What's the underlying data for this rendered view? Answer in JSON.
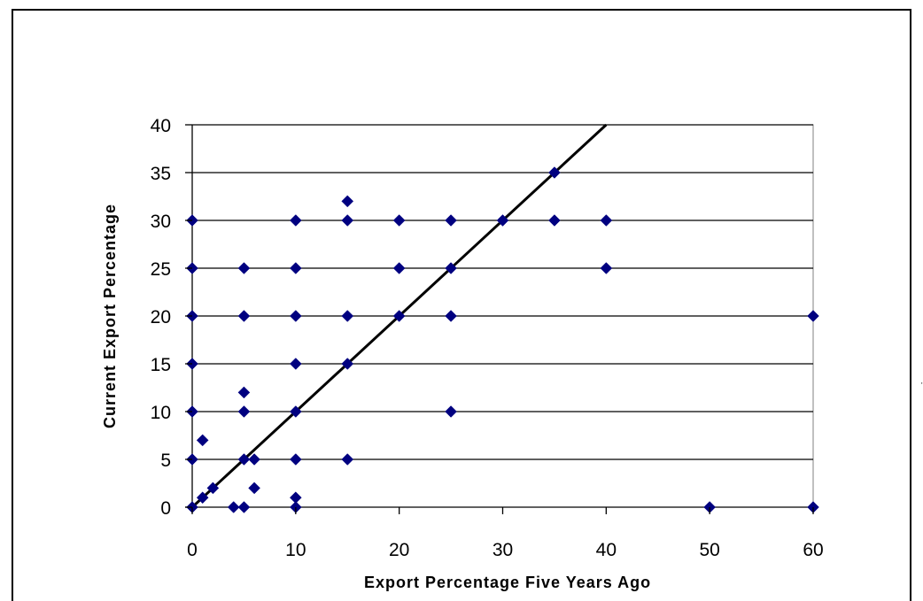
{
  "chart_data": {
    "type": "scatter",
    "xlabel": "Export Percentage Five Years Ago",
    "ylabel": "Current Export Percentage",
    "xlim": [
      0,
      60
    ],
    "ylim": [
      0,
      40
    ],
    "xticks": [
      0,
      10,
      20,
      30,
      40,
      50,
      60
    ],
    "yticks": [
      0,
      5,
      10,
      15,
      20,
      25,
      30,
      35,
      40
    ],
    "grid": "horizontal",
    "marker_color": "#000080",
    "series": [
      {
        "points": [
          [
            0,
            0
          ],
          [
            0,
            5
          ],
          [
            0,
            10
          ],
          [
            0,
            15
          ],
          [
            0,
            20
          ],
          [
            0,
            25
          ],
          [
            0,
            30
          ],
          [
            1,
            1
          ],
          [
            1,
            7
          ],
          [
            2,
            2
          ],
          [
            4,
            0
          ],
          [
            5,
            0
          ],
          [
            5,
            5
          ],
          [
            5,
            10
          ],
          [
            5,
            12
          ],
          [
            5,
            20
          ],
          [
            5,
            25
          ],
          [
            6,
            2
          ],
          [
            6,
            5
          ],
          [
            10,
            0
          ],
          [
            10,
            1
          ],
          [
            10,
            5
          ],
          [
            10,
            10
          ],
          [
            10,
            15
          ],
          [
            10,
            20
          ],
          [
            10,
            25
          ],
          [
            10,
            30
          ],
          [
            15,
            5
          ],
          [
            15,
            15
          ],
          [
            15,
            20
          ],
          [
            15,
            30
          ],
          [
            15,
            32
          ],
          [
            20,
            20
          ],
          [
            20,
            25
          ],
          [
            20,
            30
          ],
          [
            25,
            10
          ],
          [
            25,
            20
          ],
          [
            25,
            25
          ],
          [
            25,
            30
          ],
          [
            30,
            30
          ],
          [
            35,
            30
          ],
          [
            35,
            35
          ],
          [
            40,
            25
          ],
          [
            40,
            30
          ],
          [
            50,
            0
          ],
          [
            60,
            0
          ],
          [
            60,
            20
          ]
        ]
      }
    ],
    "reference_line": {
      "from": [
        0,
        0
      ],
      "to": [
        40,
        40
      ],
      "color": "#000000"
    }
  }
}
